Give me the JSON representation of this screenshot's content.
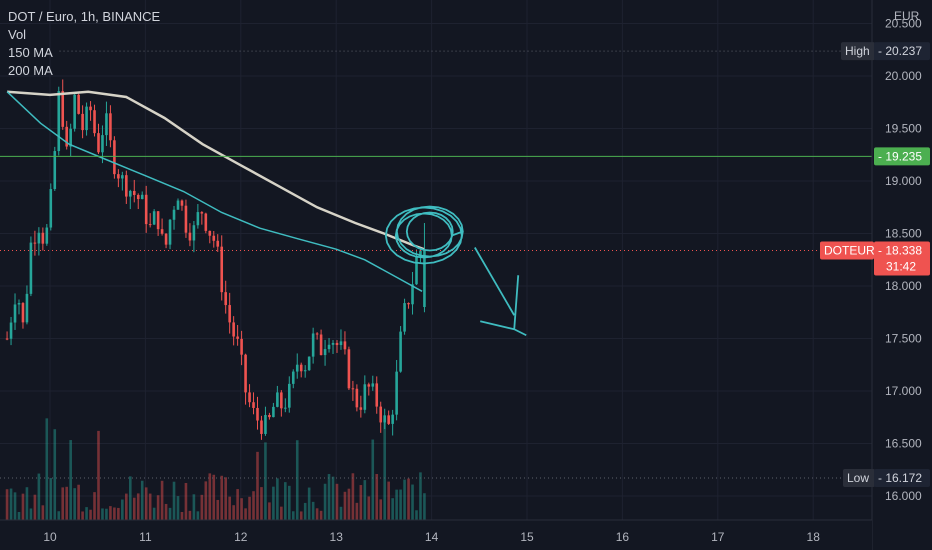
{
  "legend": {
    "symbol_line": "DOT / Euro, 1h, BINANCE",
    "vol": "Vol",
    "ma150": "150 MA",
    "ma200": "200 MA"
  },
  "currency": "EUR",
  "colors": {
    "background": "#131722",
    "up": "#26a69a",
    "down": "#ef5350",
    "ma150": "#d6d3c7",
    "ma200": "#3fbcc0",
    "hline": "#4caf50",
    "axis_text": "#b2b5be"
  },
  "chart_data": {
    "type": "candlestick",
    "timeframe": "1h",
    "exchange": "BINANCE",
    "ylim": [
      15.8,
      20.55
    ],
    "y_ticks": [
      "16.000",
      "16.500",
      "17.000",
      "17.500",
      "18.000",
      "18.500",
      "19.000",
      "19.500",
      "20.000",
      "20.500"
    ],
    "x_ticks": [
      "10",
      "11",
      "12",
      "13",
      "14",
      "15",
      "16",
      "17",
      "18"
    ],
    "x_tick_days": [
      10,
      11,
      12,
      13,
      14,
      15,
      16,
      17,
      18
    ],
    "xlim_days": [
      9.55,
      19.3
    ],
    "price_path": [
      [
        9.55,
        17.5
      ],
      [
        9.65,
        18.0
      ],
      [
        9.72,
        17.6
      ],
      [
        9.8,
        18.4
      ],
      [
        9.88,
        18.6
      ],
      [
        9.95,
        18.4
      ],
      [
        10.02,
        18.9
      ],
      [
        10.1,
        19.9
      ],
      [
        10.18,
        19.2
      ],
      [
        10.26,
        19.8
      ],
      [
        10.34,
        19.5
      ],
      [
        10.42,
        19.7
      ],
      [
        10.5,
        19.3
      ],
      [
        10.58,
        19.6
      ],
      [
        10.66,
        19.2
      ],
      [
        10.76,
        19.0
      ],
      [
        10.86,
        18.9
      ],
      [
        10.96,
        18.8
      ],
      [
        11.05,
        18.55
      ],
      [
        11.12,
        18.7
      ],
      [
        11.2,
        18.3
      ],
      [
        11.27,
        18.7
      ],
      [
        11.34,
        18.9
      ],
      [
        11.42,
        18.6
      ],
      [
        11.5,
        18.5
      ],
      [
        11.58,
        18.75
      ],
      [
        11.66,
        18.55
      ],
      [
        11.74,
        18.4
      ],
      [
        11.82,
        17.9
      ],
      [
        11.9,
        17.6
      ],
      [
        11.98,
        17.4
      ],
      [
        12.05,
        17.0
      ],
      [
        12.12,
        16.8
      ],
      [
        12.2,
        16.7
      ],
      [
        12.28,
        16.65
      ],
      [
        12.36,
        16.9
      ],
      [
        12.44,
        16.85
      ],
      [
        12.52,
        17.0
      ],
      [
        12.6,
        17.3
      ],
      [
        12.68,
        17.25
      ],
      [
        12.76,
        17.5
      ],
      [
        12.84,
        17.4
      ],
      [
        12.92,
        17.55
      ],
      [
        13.0,
        17.45
      ],
      [
        13.08,
        17.35
      ],
      [
        13.16,
        17.0
      ],
      [
        13.24,
        16.85
      ],
      [
        13.32,
        17.05
      ],
      [
        13.4,
        16.95
      ],
      [
        13.48,
        16.75
      ],
      [
        13.56,
        16.65
      ],
      [
        13.63,
        17.1
      ],
      [
        13.7,
        17.7
      ],
      [
        13.78,
        17.95
      ],
      [
        13.86,
        18.35
      ],
      [
        13.93,
        18.34
      ]
    ],
    "ma150": [
      [
        9.55,
        19.85
      ],
      [
        10.0,
        19.82
      ],
      [
        10.4,
        19.85
      ],
      [
        10.8,
        19.8
      ],
      [
        11.2,
        19.6
      ],
      [
        11.6,
        19.35
      ],
      [
        12.0,
        19.15
      ],
      [
        12.4,
        18.95
      ],
      [
        12.8,
        18.75
      ],
      [
        13.2,
        18.6
      ],
      [
        13.5,
        18.5
      ],
      [
        13.8,
        18.39
      ],
      [
        13.92,
        18.35
      ]
    ],
    "ma200": [
      [
        9.55,
        19.85
      ],
      [
        9.9,
        19.55
      ],
      [
        10.2,
        19.35
      ],
      [
        10.6,
        19.2
      ],
      [
        11.0,
        19.05
      ],
      [
        11.4,
        18.9
      ],
      [
        11.8,
        18.7
      ],
      [
        12.2,
        18.55
      ],
      [
        12.6,
        18.45
      ],
      [
        13.0,
        18.35
      ],
      [
        13.3,
        18.25
      ],
      [
        13.6,
        18.1
      ],
      [
        13.9,
        17.95
      ]
    ],
    "horizontal_line": {
      "value": 19.235,
      "label": "19.235"
    },
    "last_price": {
      "value": 18.338,
      "symbol": "DOTEUR",
      "price_label": "18.338",
      "countdown": "31:42"
    },
    "high": {
      "label": "High",
      "value": 20.237,
      "value_label": "20.237"
    },
    "low": {
      "label": "Low",
      "value": 16.172,
      "value_label": "16.172"
    },
    "annotation": {
      "type": "freehand-circle-and-arrow",
      "center": [
        13.95,
        18.5
      ],
      "arrow_end": [
        14.95,
        17.55
      ]
    }
  }
}
